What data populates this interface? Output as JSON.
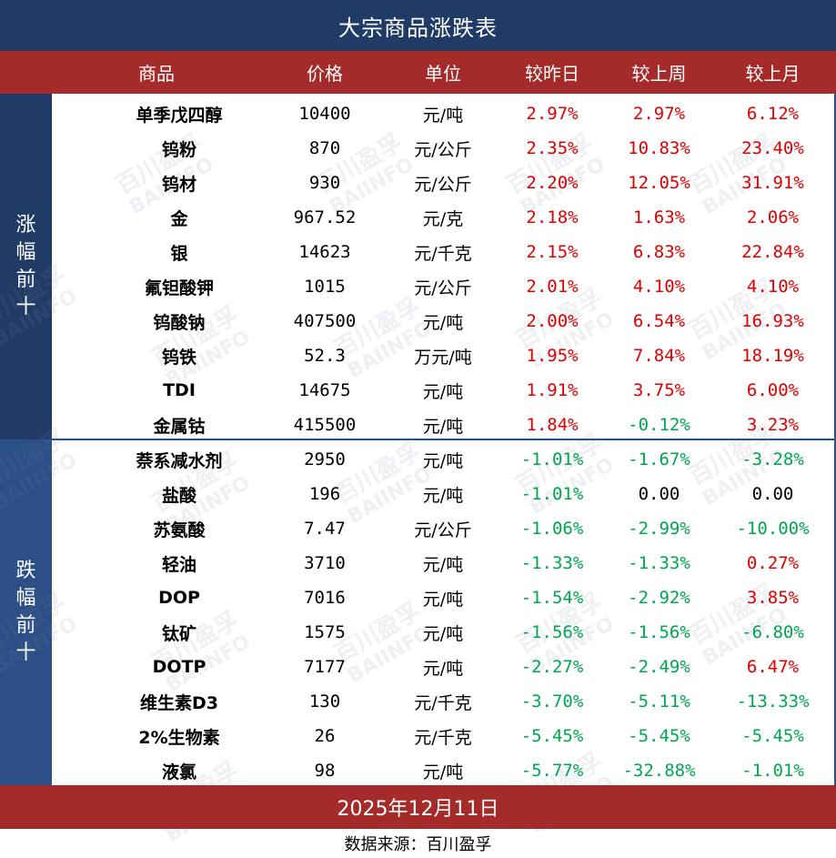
{
  "title": "大宗商品涨跌表",
  "headers": {
    "name": "商品",
    "price": "价格",
    "unit": "单位",
    "day": "较昨日",
    "week": "较上周",
    "month": "较上月"
  },
  "side_up": [
    "涨",
    "幅",
    "前",
    "十"
  ],
  "side_down": [
    "跌",
    "幅",
    "前",
    "十"
  ],
  "rows": [
    {
      "name": "单季戊四醇",
      "price": "10400",
      "unit": "元/吨",
      "day": "2.97%",
      "week": "2.97%",
      "month": "6.12%"
    },
    {
      "name": "钨粉",
      "price": "870",
      "unit": "元/公斤",
      "day": "2.35%",
      "week": "10.83%",
      "month": "23.40%"
    },
    {
      "name": "钨材",
      "price": "930",
      "unit": "元/公斤",
      "day": "2.20%",
      "week": "12.05%",
      "month": "31.91%"
    },
    {
      "name": "金",
      "price": "967.52",
      "unit": "元/克",
      "day": "2.18%",
      "week": "1.63%",
      "month": "2.06%"
    },
    {
      "name": "银",
      "price": "14623",
      "unit": "元/千克",
      "day": "2.15%",
      "week": "6.83%",
      "month": "22.84%"
    },
    {
      "name": "氟钽酸钾",
      "price": "1015",
      "unit": "元/公斤",
      "day": "2.01%",
      "week": "4.10%",
      "month": "4.10%"
    },
    {
      "name": "钨酸钠",
      "price": "407500",
      "unit": "元/吨",
      "day": "2.00%",
      "week": "6.54%",
      "month": "16.93%"
    },
    {
      "name": "钨铁",
      "price": "52.3",
      "unit": "万元/吨",
      "day": "1.95%",
      "week": "7.84%",
      "month": "18.19%"
    },
    {
      "name": "TDI",
      "price": "14675",
      "unit": "元/吨",
      "day": "1.91%",
      "week": "3.75%",
      "month": "6.00%"
    },
    {
      "name": "金属钴",
      "price": "415500",
      "unit": "元/吨",
      "day": "1.84%",
      "week": "-0.12%",
      "month": "3.23%"
    },
    {
      "name": "萘系减水剂",
      "price": "2950",
      "unit": "元/吨",
      "day": "-1.01%",
      "week": "-1.67%",
      "month": "-3.28%"
    },
    {
      "name": "盐酸",
      "price": "196",
      "unit": "元/吨",
      "day": "-1.01%",
      "week": "0.00",
      "month": "0.00"
    },
    {
      "name": "苏氨酸",
      "price": "7.47",
      "unit": "元/公斤",
      "day": "-1.06%",
      "week": "-2.99%",
      "month": "-10.00%"
    },
    {
      "name": "轻油",
      "price": "3710",
      "unit": "元/吨",
      "day": "-1.33%",
      "week": "-1.33%",
      "month": "0.27%"
    },
    {
      "name": "DOP",
      "price": "7016",
      "unit": "元/吨",
      "day": "-1.54%",
      "week": "-2.92%",
      "month": "3.85%"
    },
    {
      "name": "钛矿",
      "price": "1575",
      "unit": "元/吨",
      "day": "-1.56%",
      "week": "-1.56%",
      "month": "-6.80%"
    },
    {
      "name": "DOTP",
      "price": "7177",
      "unit": "元/吨",
      "day": "-2.27%",
      "week": "-2.49%",
      "month": "6.47%"
    },
    {
      "name": "维生素D3",
      "price": "130",
      "unit": "元/千克",
      "day": "-3.70%",
      "week": "-5.11%",
      "month": "-13.33%"
    },
    {
      "name": "2%生物素",
      "price": "26",
      "unit": "元/千克",
      "day": "-5.45%",
      "week": "-5.45%",
      "month": "-5.45%"
    },
    {
      "name": "液氯",
      "price": "98",
      "unit": "元/吨",
      "day": "-5.77%",
      "week": "-32.88%",
      "month": "-1.01%"
    }
  ],
  "date": "2025年12月11日",
  "source": "数据来源：百川盈孚",
  "watermark": {
    "line1": "百川盈孚",
    "line2": "BAIINFO"
  },
  "colors": {
    "navy": "#1f3b66",
    "red_band": "#a52a2a",
    "up": "#e00000",
    "down": "#00a651"
  }
}
